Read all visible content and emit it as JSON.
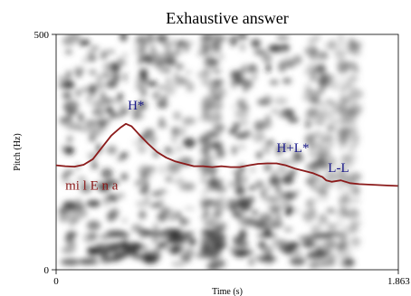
{
  "chart_data": {
    "type": "line",
    "title": "Exhaustive answer",
    "xlabel": "Time (s)",
    "ylabel": "Pitch (Hz)",
    "x_tick_labels": [
      "0",
      "1.863"
    ],
    "y_tick_labels": [
      "0",
      "500"
    ],
    "xlim": [
      0,
      1.863
    ],
    "ylim": [
      0,
      500
    ],
    "background": "spectrogram",
    "grid": false,
    "series": [
      {
        "color": "#8b1a1a",
        "x": [
          0.0,
          0.05,
          0.1,
          0.15,
          0.2,
          0.25,
          0.3,
          0.35,
          0.38,
          0.41,
          0.45,
          0.5,
          0.55,
          0.6,
          0.65,
          0.7,
          0.75,
          0.8,
          0.85,
          0.9,
          0.95,
          1.0,
          1.05,
          1.1,
          1.15,
          1.2,
          1.25,
          1.3,
          1.35,
          1.4,
          1.45,
          1.47,
          1.5,
          1.55,
          1.6,
          1.65,
          1.7,
          1.75,
          1.8,
          1.86
        ],
        "y": [
          222,
          220,
          219,
          223,
          235,
          260,
          285,
          302,
          310,
          305,
          288,
          268,
          250,
          238,
          230,
          225,
          220,
          220,
          218,
          220,
          218,
          218,
          222,
          225,
          226,
          226,
          222,
          215,
          210,
          205,
          197,
          190,
          187,
          190,
          184,
          182,
          181,
          180,
          179,
          178
        ]
      }
    ],
    "annotations": [
      {
        "text": "H*",
        "x": 0.39,
        "y": 340,
        "color": "#1a1a8a"
      },
      {
        "text": "H+L*",
        "x": 1.2,
        "y": 250,
        "color": "#1a1a8a"
      },
      {
        "text": "L-L",
        "x": 1.48,
        "y": 208,
        "color": "#1a1a8a"
      },
      {
        "text": "mi l E n a",
        "x": 0.05,
        "y": 170,
        "color": "#8b1a1a"
      }
    ]
  }
}
